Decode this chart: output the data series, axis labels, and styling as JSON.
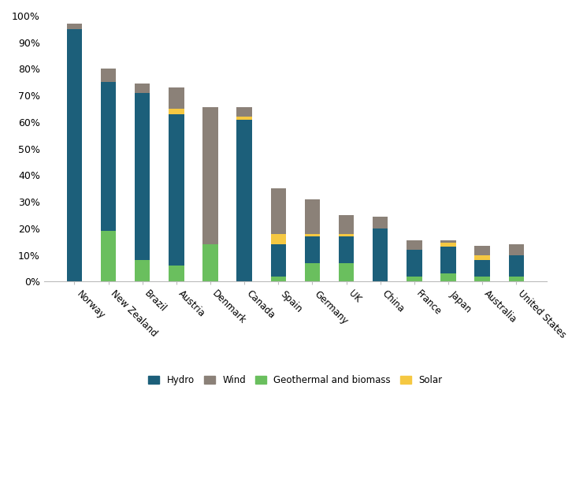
{
  "countries": [
    "Norway",
    "New Zealand",
    "Brazil",
    "Austria",
    "Denmark",
    "Canada",
    "Spain",
    "Germany",
    "UK",
    "China",
    "France",
    "Japan",
    "Australia",
    "United States"
  ],
  "final_geo": [
    0,
    19,
    8,
    6,
    14,
    0,
    2,
    7,
    7,
    0,
    2,
    3,
    2,
    2
  ],
  "final_hydro": [
    95,
    56,
    63,
    57,
    0,
    61,
    12,
    10,
    10,
    20,
    10,
    10,
    6,
    8
  ],
  "final_solar": [
    0,
    0,
    0,
    2,
    0,
    1,
    4,
    1,
    1,
    0,
    0,
    1.5,
    2,
    0
  ],
  "final_wind": [
    2,
    5,
    3.5,
    8,
    51.5,
    3.5,
    17,
    13,
    7,
    4.5,
    3.5,
    1,
    3.5,
    4
  ],
  "colors": {
    "hydro": "#1c5f7a",
    "wind": "#8b8178",
    "geo_biomass": "#6abf5e",
    "solar": "#f5c842"
  },
  "ylim": [
    0,
    100
  ],
  "ytick_labels": [
    "0%",
    "10%",
    "20%",
    "30%",
    "40%",
    "50%",
    "60%",
    "70%",
    "80%",
    "90%",
    "100%"
  ],
  "ytick_values": [
    0,
    10,
    20,
    30,
    40,
    50,
    60,
    70,
    80,
    90,
    100
  ],
  "background_color": "#ffffff",
  "bar_width": 0.45
}
